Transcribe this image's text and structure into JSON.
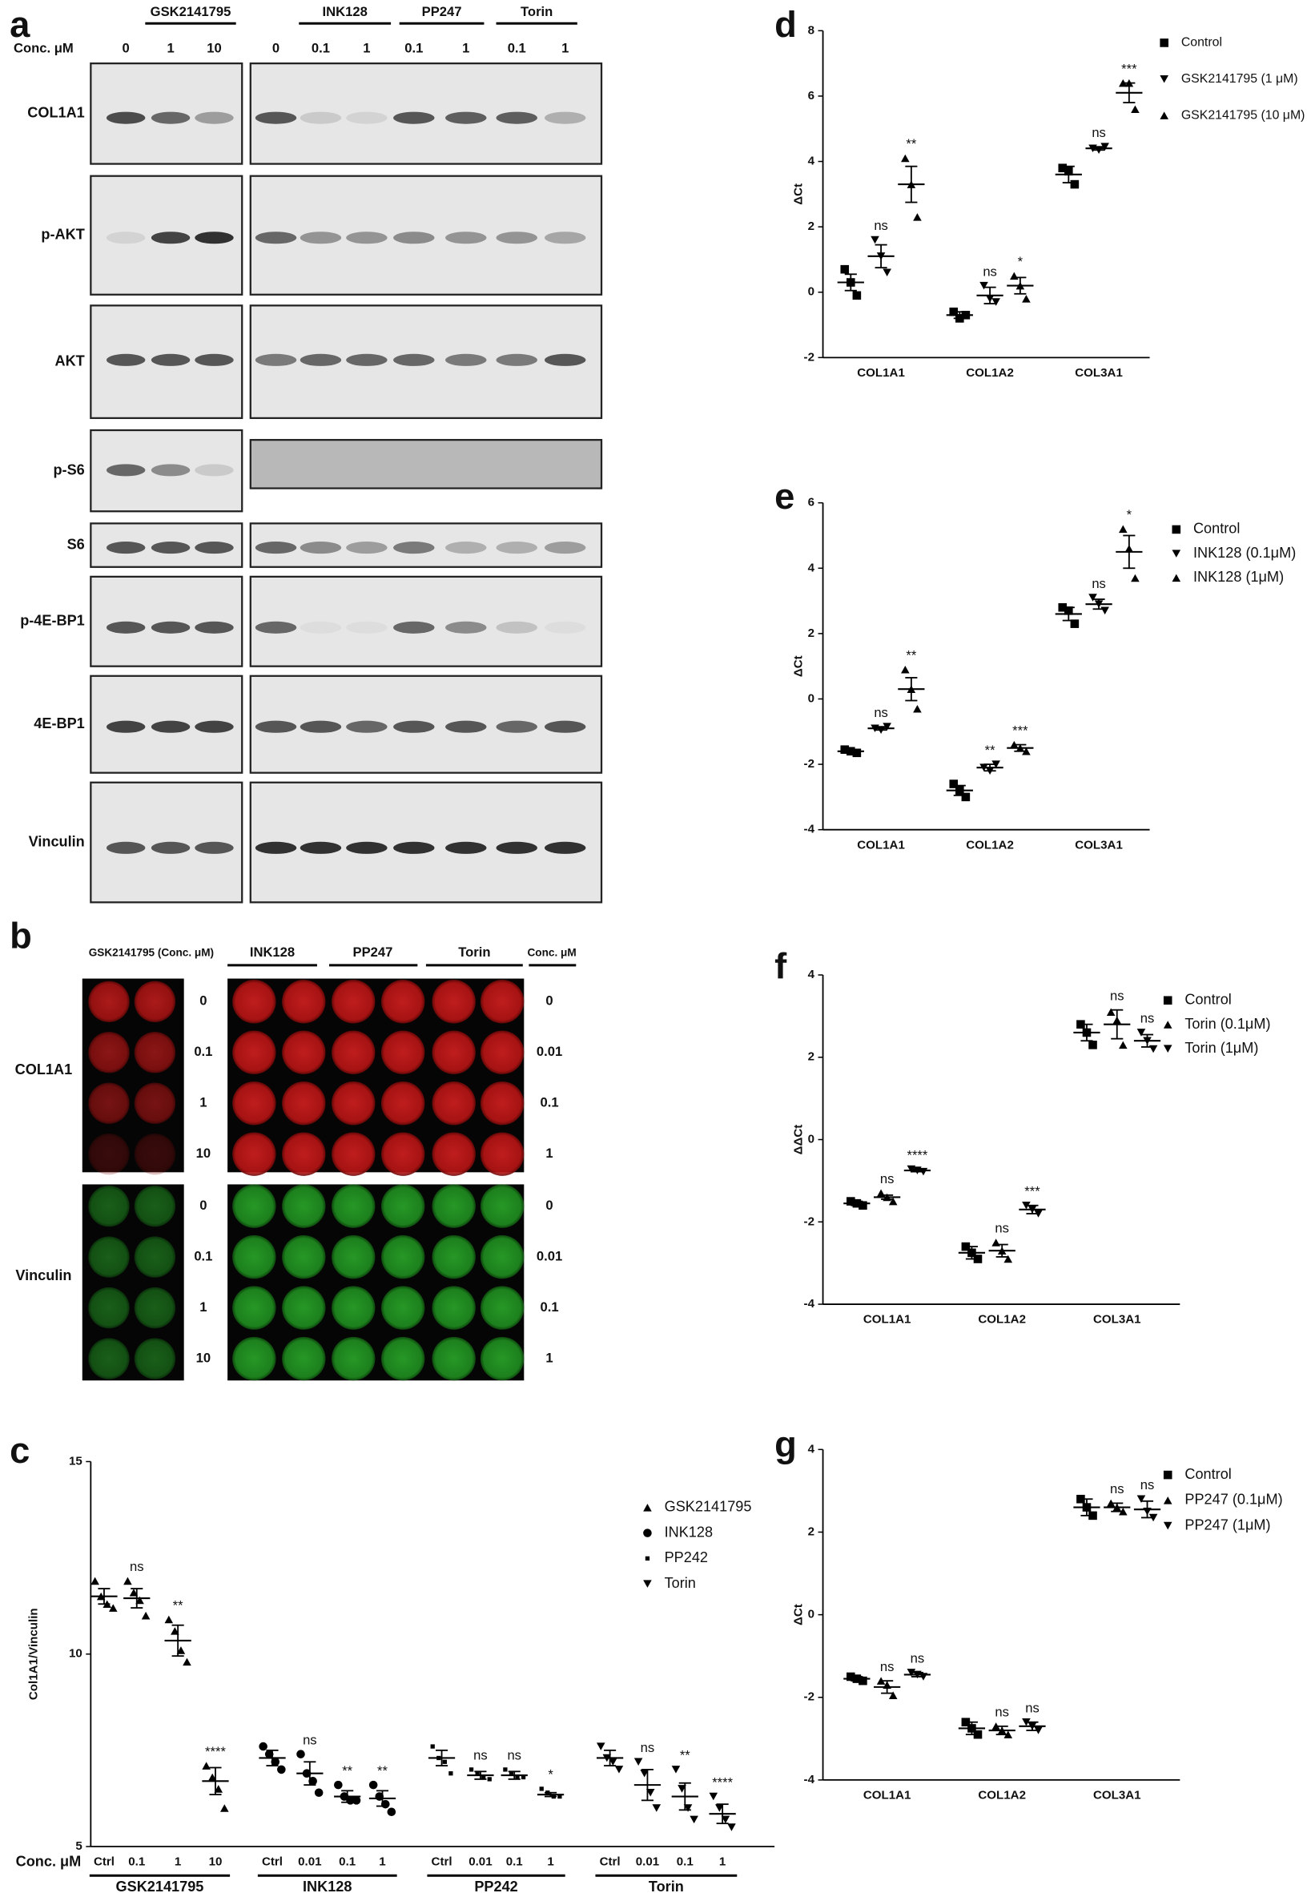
{
  "panel_a": {
    "label": "a",
    "conc_label": "Conc. μM",
    "groups": [
      "GSK2141795",
      "INK128",
      "PP247",
      "Torin"
    ],
    "lanes": [
      "0",
      "1",
      "10",
      "0",
      "0.1",
      "1",
      "0.1",
      "1",
      "0.1",
      "1"
    ],
    "rows": [
      "COL1A1",
      "p-AKT",
      "AKT",
      "p-S6",
      "S6",
      "p-4E-BP1",
      "4E-BP1",
      "Vinculin"
    ]
  },
  "panel_b": {
    "label": "b",
    "headers": [
      "GSK2141795 (Conc. μM)",
      "INK128",
      "PP247",
      "Torin",
      "Conc. μM"
    ],
    "rows": [
      "COL1A1",
      "Vinculin"
    ],
    "left_conc": [
      "0",
      "0.1",
      "1",
      "10"
    ],
    "right_conc": [
      "0",
      "0.01",
      "0.1",
      "1"
    ]
  },
  "chart_data": [
    {
      "panel": "c",
      "type": "strip",
      "y_label": "Col1A1/Vinculin",
      "x_label": "Conc. μM",
      "color": "#000000",
      "ylim": [
        5,
        15
      ],
      "yticks": [
        5,
        10,
        15
      ],
      "legend": "upper right",
      "series": [
        {
          "name": "GSK2141795",
          "marker": "triangle-up",
          "categories": [
            "Ctrl",
            "0.1",
            "1",
            "10"
          ],
          "values": [
            11.5,
            11.45,
            10.35,
            6.7
          ],
          "errors": [
            0.2,
            0.25,
            0.4,
            0.35
          ],
          "points": [
            [
              11.9,
              11.5,
              11.3,
              11.2
            ],
            [
              11.9,
              11.6,
              11.4,
              11.0
            ],
            [
              10.9,
              10.6,
              10.1,
              9.8
            ],
            [
              7.1,
              6.8,
              6.5,
              6.0
            ]
          ],
          "significance": [
            null,
            "ns",
            "**",
            "****"
          ]
        },
        {
          "name": "INK128",
          "marker": "circle",
          "categories": [
            "Ctrl",
            "0.01",
            "0.1",
            "1"
          ],
          "values": [
            7.3,
            6.9,
            6.3,
            6.25
          ],
          "errors": [
            0.2,
            0.3,
            0.15,
            0.2
          ],
          "points": [
            [
              7.6,
              7.4,
              7.2,
              7.0
            ],
            [
              7.4,
              6.9,
              6.7,
              6.4
            ],
            [
              6.6,
              6.3,
              6.2,
              6.2
            ],
            [
              6.6,
              6.3,
              6.1,
              5.9
            ]
          ],
          "significance": [
            null,
            "ns",
            "**",
            "**"
          ]
        },
        {
          "name": "PP242",
          "marker": "dot",
          "categories": [
            "Ctrl",
            "0.01",
            "0.1",
            "1"
          ],
          "values": [
            7.3,
            6.85,
            6.85,
            6.35
          ],
          "errors": [
            0.2,
            0.1,
            0.1,
            0.05
          ],
          "points": [
            [
              7.6,
              7.3,
              7.2,
              6.9
            ],
            [
              7.0,
              6.9,
              6.8,
              6.75
            ],
            [
              7.0,
              6.9,
              6.8,
              6.8
            ],
            [
              6.5,
              6.4,
              6.3,
              6.3
            ]
          ],
          "significance": [
            null,
            "ns",
            "ns",
            "*"
          ]
        },
        {
          "name": "Torin",
          "marker": "triangle-down",
          "categories": [
            "Ctrl",
            "0.01",
            "0.1",
            "1"
          ],
          "values": [
            7.3,
            6.6,
            6.3,
            5.85
          ],
          "errors": [
            0.2,
            0.4,
            0.35,
            0.25
          ],
          "points": [
            [
              7.6,
              7.3,
              7.2,
              7.0
            ],
            [
              7.2,
              6.9,
              6.4,
              6.0
            ],
            [
              7.0,
              6.5,
              6.0,
              5.7
            ],
            [
              6.3,
              6.0,
              5.7,
              5.5
            ]
          ],
          "significance": [
            null,
            "ns",
            "**",
            "****"
          ]
        }
      ]
    },
    {
      "panel": "d",
      "type": "strip",
      "y_label": "ΔCt",
      "color": "#000000",
      "categories": [
        "COL1A1",
        "COL1A2",
        "COL3A1"
      ],
      "ylim": [
        -2,
        8
      ],
      "yticks": [
        -2,
        0,
        2,
        4,
        6,
        8
      ],
      "legend": "upper right",
      "series": [
        {
          "name": "Control",
          "marker": "square",
          "values": [
            0.3,
            -0.7,
            3.6
          ],
          "errors": [
            0.25,
            0.1,
            0.25
          ],
          "points": [
            [
              0.7,
              0.3,
              -0.1
            ],
            [
              -0.6,
              -0.8,
              -0.7
            ],
            [
              3.8,
              3.7,
              3.3
            ]
          ]
        },
        {
          "name": "GSK2141795 (1 μM)",
          "marker": "triangle-down",
          "values": [
            1.1,
            -0.1,
            4.4
          ],
          "errors": [
            0.35,
            0.25,
            0.05
          ],
          "points": [
            [
              1.6,
              1.1,
              0.6
            ],
            [
              0.2,
              -0.2,
              -0.3
            ],
            [
              4.4,
              4.35,
              4.45
            ]
          ],
          "significance": [
            "ns",
            "ns",
            "ns"
          ]
        },
        {
          "name": "GSK2141795 (10 μM)",
          "marker": "triangle-up",
          "values": [
            3.3,
            0.2,
            6.1
          ],
          "errors": [
            0.55,
            0.25,
            0.3
          ],
          "points": [
            [
              4.1,
              3.3,
              2.3
            ],
            [
              0.5,
              0.2,
              -0.2
            ],
            [
              6.4,
              6.4,
              5.6
            ]
          ],
          "significance": [
            "**",
            "*",
            "***"
          ]
        }
      ]
    },
    {
      "panel": "e",
      "type": "strip",
      "y_label": "ΔCt",
      "color": "#000000",
      "categories": [
        "COL1A1",
        "COL1A2",
        "COL3A1"
      ],
      "ylim": [
        -4,
        6
      ],
      "yticks": [
        -4,
        -2,
        0,
        2,
        4,
        6
      ],
      "legend": "upper right",
      "series": [
        {
          "name": "Control",
          "marker": "square",
          "values": [
            -1.6,
            -2.8,
            2.6
          ],
          "errors": [
            0.05,
            0.15,
            0.2
          ],
          "points": [
            [
              -1.55,
              -1.6,
              -1.65
            ],
            [
              -2.6,
              -2.8,
              -3.0
            ],
            [
              2.8,
              2.7,
              2.3
            ]
          ]
        },
        {
          "name": "INK128 (0.1μM)",
          "marker": "triangle-down",
          "values": [
            -0.9,
            -2.1,
            2.9
          ],
          "errors": [
            0.05,
            0.1,
            0.15
          ],
          "points": [
            [
              -0.9,
              -0.95,
              -0.85
            ],
            [
              -2.1,
              -2.2,
              -2.0
            ],
            [
              3.1,
              2.9,
              2.7
            ]
          ],
          "significance": [
            "ns",
            "**",
            "ns"
          ]
        },
        {
          "name": "INK128 (1μM)",
          "marker": "triangle-up",
          "values": [
            0.3,
            -1.5,
            4.5
          ],
          "errors": [
            0.35,
            0.1,
            0.5
          ],
          "points": [
            [
              0.9,
              0.3,
              -0.3
            ],
            [
              -1.4,
              -1.5,
              -1.6
            ],
            [
              5.2,
              4.6,
              3.7
            ]
          ],
          "significance": [
            "**",
            "***",
            "*"
          ]
        }
      ]
    },
    {
      "panel": "f",
      "type": "strip",
      "y_label": "ΔΔCt",
      "color": "#000000",
      "categories": [
        "COL1A1",
        "COL1A2",
        "COL3A1"
      ],
      "ylim": [
        -4,
        4
      ],
      "yticks": [
        -4,
        -2,
        0,
        2,
        4
      ],
      "legend": "upper right",
      "series": [
        {
          "name": "Control",
          "marker": "square",
          "values": [
            -1.55,
            -2.75,
            2.6
          ],
          "errors": [
            0.05,
            0.15,
            0.2
          ],
          "points": [
            [
              -1.5,
              -1.55,
              -1.6
            ],
            [
              -2.6,
              -2.75,
              -2.9
            ],
            [
              2.8,
              2.6,
              2.3
            ]
          ]
        },
        {
          "name": "Torin (0.1μM)",
          "marker": "triangle-up",
          "values": [
            -1.4,
            -2.7,
            2.8
          ],
          "errors": [
            0.05,
            0.15,
            0.35
          ],
          "points": [
            [
              -1.3,
              -1.4,
              -1.5
            ],
            [
              -2.5,
              -2.7,
              -2.9
            ],
            [
              3.1,
              2.9,
              2.3
            ]
          ],
          "significance": [
            "ns",
            "ns",
            "ns"
          ]
        },
        {
          "name": "Torin (1μM)",
          "marker": "triangle-down",
          "values": [
            -0.75,
            -1.7,
            2.4
          ],
          "errors": [
            0.03,
            0.1,
            0.15
          ],
          "points": [
            [
              -0.72,
              -0.75,
              -0.78
            ],
            [
              -1.6,
              -1.7,
              -1.8
            ],
            [
              2.6,
              2.4,
              2.2
            ]
          ],
          "significance": [
            "****",
            "***",
            "ns"
          ]
        }
      ]
    },
    {
      "panel": "g",
      "type": "strip",
      "y_label": "ΔCt",
      "color": "#000000",
      "categories": [
        "COL1A1",
        "COL1A2",
        "COL3A1"
      ],
      "ylim": [
        -4,
        4
      ],
      "yticks": [
        -4,
        -2,
        0,
        2,
        4
      ],
      "legend": "upper right",
      "series": [
        {
          "name": "Control",
          "marker": "square",
          "values": [
            -1.55,
            -2.75,
            2.6
          ],
          "errors": [
            0.05,
            0.15,
            0.2
          ],
          "points": [
            [
              -1.5,
              -1.55,
              -1.6
            ],
            [
              -2.6,
              -2.75,
              -2.9
            ],
            [
              2.8,
              2.6,
              2.4
            ]
          ]
        },
        {
          "name": "PP247 (0.1μM)",
          "marker": "triangle-up",
          "values": [
            -1.75,
            -2.8,
            2.6
          ],
          "errors": [
            0.15,
            0.1,
            0.1
          ],
          "points": [
            [
              -1.6,
              -1.7,
              -1.95
            ],
            [
              -2.7,
              -2.8,
              -2.9
            ],
            [
              2.7,
              2.6,
              2.5
            ]
          ],
          "significance": [
            "ns",
            "ns",
            "ns"
          ]
        },
        {
          "name": "PP247 (1μM)",
          "marker": "triangle-down",
          "values": [
            -1.45,
            -2.7,
            2.55
          ],
          "errors": [
            0.05,
            0.1,
            0.2
          ],
          "points": [
            [
              -1.4,
              -1.45,
              -1.5
            ],
            [
              -2.6,
              -2.7,
              -2.8
            ],
            [
              2.8,
              2.5,
              2.35
            ]
          ],
          "significance": [
            "ns",
            "ns",
            "ns"
          ]
        }
      ]
    }
  ]
}
